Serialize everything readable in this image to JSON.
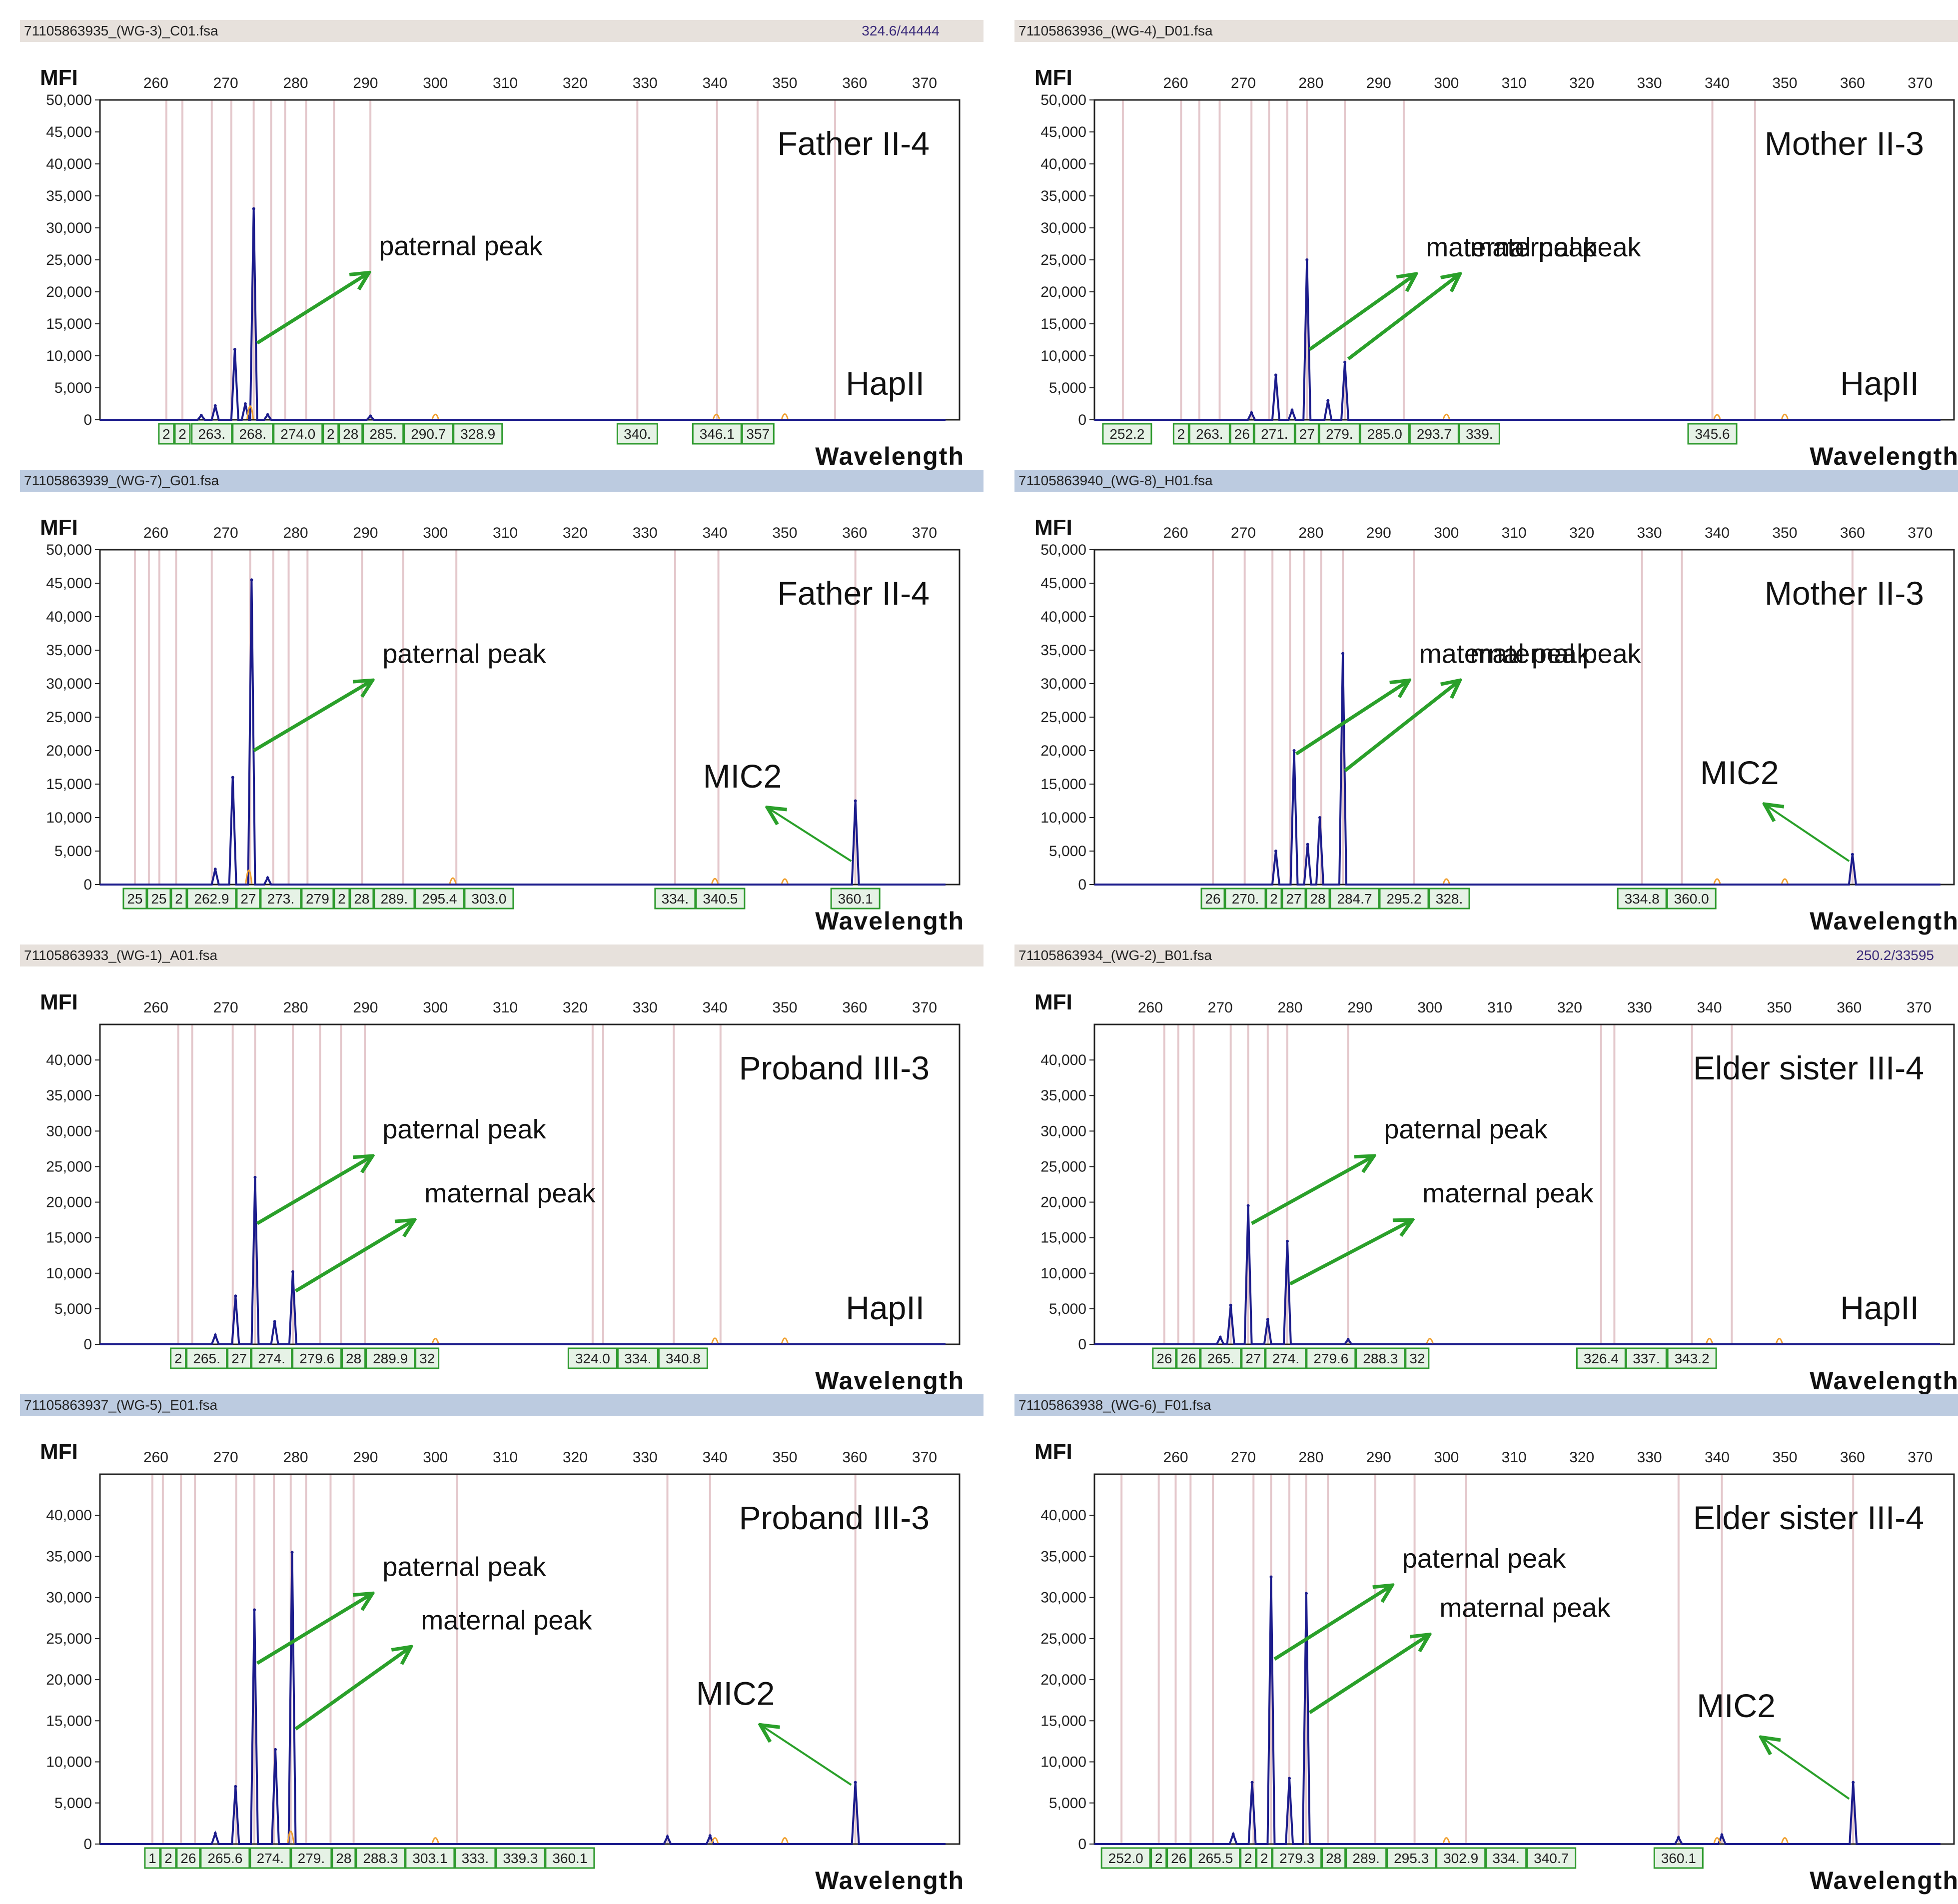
{
  "common": {
    "y_axis_label": "MFI",
    "x_axis_label": "Wavelength",
    "x_ticks": [
      260,
      270,
      280,
      290,
      300,
      310,
      320,
      330,
      340,
      350,
      360,
      370
    ],
    "hap_label": "HapII",
    "mic_label": "MIC2",
    "paternal_label": "paternal peak",
    "maternal_label": "maternal peak"
  },
  "colors": {
    "trace": "#1c1c8c",
    "arrow": "#2aa02a",
    "gridline": "#e4c8cc",
    "bin_box": "#2e9a2e",
    "bin_fill": "#e6f2e6",
    "header_tan": "#e7e1dc",
    "header_blue": "#bccbe0",
    "frame": "#222222"
  },
  "chart_data": [
    {
      "id": "A",
      "type": "line",
      "filename": "71105863935_(WG-3)_C01.fsa",
      "header_value": "324.6/44444",
      "header_style": "tan",
      "title": "Father II-4",
      "show_hap": true,
      "show_mic": false,
      "xlim": [
        252,
        375
      ],
      "ylim": [
        0,
        50000
      ],
      "yticks": [
        0,
        5000,
        10000,
        15000,
        20000,
        25000,
        30000,
        35000,
        40000,
        45000,
        50000
      ],
      "ytick_labels": [
        "0",
        "5,000",
        "10,000",
        "15,000",
        "20,000",
        "25,000",
        "30,000",
        "35,000",
        "40,000",
        "45,000",
        "50,000"
      ],
      "gridlines": [
        261.5,
        263.8,
        268.0,
        270.8,
        274.0,
        276.5,
        278.5,
        281.5,
        285.5,
        290.7,
        328.9,
        340.3,
        346.1,
        357.2
      ],
      "bins": [
        "2",
        "2",
        "263.",
        "268.",
        "274.0",
        "2",
        "28",
        "285.",
        "290.7",
        "328.9",
        "340.",
        "346.1",
        "357"
      ],
      "peaks": [
        {
          "x": 266.5,
          "y": 700
        },
        {
          "x": 268.5,
          "y": 2200
        },
        {
          "x": 271.3,
          "y": 11000
        },
        {
          "x": 272.8,
          "y": 2500
        },
        {
          "x": 274.0,
          "y": 33000
        },
        {
          "x": 276.0,
          "y": 800
        },
        {
          "x": 290.7,
          "y": 600
        }
      ],
      "markers": [
        {
          "x": 273.5,
          "y": 3500
        },
        {
          "x": 300.0,
          "y": 900
        },
        {
          "x": 340.2,
          "y": 900
        },
        {
          "x": 350.0,
          "y": 1000
        }
      ],
      "annotations": [
        {
          "label": "paternal_label",
          "text": "paternal peak",
          "start": [
            274.5,
            12000
          ],
          "end": [
            290.5,
            23000
          ]
        }
      ]
    },
    {
      "id": "B",
      "type": "line",
      "filename": "71105863936_(WG-4)_D01.fsa",
      "header_value": "",
      "header_style": "tan",
      "title": "Mother II-3",
      "show_hap": true,
      "show_mic": false,
      "xlim": [
        248,
        375
      ],
      "ylim": [
        0,
        50000
      ],
      "yticks": [
        0,
        5000,
        10000,
        15000,
        20000,
        25000,
        30000,
        35000,
        40000,
        45000,
        50000
      ],
      "ytick_labels": [
        "0",
        "5,000",
        "10,000",
        "15,000",
        "20,000",
        "25,000",
        "30,000",
        "35,000",
        "40,000",
        "45,000",
        "50,000"
      ],
      "gridlines": [
        252.2,
        260.8,
        263.5,
        266.5,
        271.2,
        273.8,
        276.5,
        279.4,
        285.0,
        293.7,
        339.3,
        345.6
      ],
      "bins": [
        "252.2",
        "2",
        "263.",
        "26",
        "271.",
        "27",
        "279.",
        "285.0",
        "293.7",
        "339.",
        "345.6"
      ],
      "peaks": [
        {
          "x": 271.2,
          "y": 1100
        },
        {
          "x": 274.8,
          "y": 7000
        },
        {
          "x": 277.2,
          "y": 1500
        },
        {
          "x": 279.4,
          "y": 25000
        },
        {
          "x": 282.5,
          "y": 3000
        },
        {
          "x": 285.0,
          "y": 9000
        }
      ],
      "markers": [
        {
          "x": 300.0,
          "y": 900
        },
        {
          "x": 340.0,
          "y": 800
        },
        {
          "x": 350.0,
          "y": 900
        }
      ],
      "annotations": [
        {
          "label": "maternal_label",
          "text": "maternal peak",
          "start": [
            279.8,
            11000
          ],
          "end": [
            295.5,
            22800
          ]
        },
        {
          "label": "maternal_label",
          "text": "maternal peak",
          "start": [
            285.5,
            9500
          ],
          "end": [
            302.0,
            22800
          ]
        }
      ]
    },
    {
      "id": "C",
      "type": "line",
      "filename": "71105863939_(WG-7)_G01.fsa",
      "header_value": "",
      "header_style": "blue",
      "title": "Father II-4",
      "show_hap": false,
      "show_mic": true,
      "xlim": [
        252,
        375
      ],
      "ylim": [
        0,
        50000
      ],
      "yticks": [
        0,
        5000,
        10000,
        15000,
        20000,
        25000,
        30000,
        35000,
        40000,
        45000,
        50000
      ],
      "ytick_labels": [
        "0",
        "5,000",
        "10,000",
        "15,000",
        "20,000",
        "25,000",
        "30,000",
        "35,000",
        "40,000",
        "45,000",
        "50,000"
      ],
      "gridlines": [
        257.0,
        259.0,
        260.5,
        262.9,
        268.0,
        273.5,
        276.8,
        279.0,
        281.7,
        289.5,
        295.4,
        303.0,
        334.3,
        340.5,
        360.1
      ],
      "bins": [
        "25",
        "25",
        "2",
        "262.9",
        "27",
        "273.",
        "279",
        "2",
        "28",
        "289.",
        "295.4",
        "303.0",
        "334.",
        "340.5",
        "360.1"
      ],
      "peaks": [
        {
          "x": 268.5,
          "y": 2300
        },
        {
          "x": 271.0,
          "y": 16000
        },
        {
          "x": 273.7,
          "y": 45500
        },
        {
          "x": 276.0,
          "y": 1000
        },
        {
          "x": 360.1,
          "y": 12500
        }
      ],
      "markers": [
        {
          "x": 273.3,
          "y": 3500
        },
        {
          "x": 302.5,
          "y": 1200
        },
        {
          "x": 340.0,
          "y": 1000
        },
        {
          "x": 350.0,
          "y": 900
        }
      ],
      "annotations": [
        {
          "label": "paternal_label",
          "text": "paternal peak",
          "start": [
            274.0,
            20000
          ],
          "end": [
            291.0,
            30500
          ]
        },
        {
          "label": "mic_label",
          "text": "MIC2",
          "start": [
            359.5,
            3500
          ],
          "end": [
            347.5,
            11500
          ]
        }
      ]
    },
    {
      "id": "D",
      "type": "line",
      "filename": "71105863940_(WG-8)_H01.fsa",
      "header_value": "",
      "header_style": "blue",
      "title": "Mother II-3",
      "show_hap": false,
      "show_mic": true,
      "xlim": [
        248,
        375
      ],
      "ylim": [
        0,
        50000
      ],
      "yticks": [
        0,
        5000,
        10000,
        15000,
        20000,
        25000,
        30000,
        35000,
        40000,
        45000,
        50000
      ],
      "ytick_labels": [
        "0",
        "5,000",
        "10,000",
        "15,000",
        "20,000",
        "25,000",
        "30,000",
        "35,000",
        "40,000",
        "45,000",
        "50,000"
      ],
      "gridlines": [
        265.5,
        270.2,
        274.3,
        276.9,
        279.0,
        281.5,
        284.7,
        295.2,
        328.9,
        334.8,
        360.0
      ],
      "bins": [
        "26",
        "270.",
        "2",
        "27",
        "28",
        "284.7",
        "295.2",
        "328.",
        "334.8",
        "360.0"
      ],
      "peaks": [
        {
          "x": 274.8,
          "y": 5000
        },
        {
          "x": 277.5,
          "y": 20000
        },
        {
          "x": 279.5,
          "y": 6000
        },
        {
          "x": 281.3,
          "y": 10000
        },
        {
          "x": 284.7,
          "y": 34500
        },
        {
          "x": 360.0,
          "y": 4500
        }
      ],
      "markers": [
        {
          "x": 300.0,
          "y": 900
        },
        {
          "x": 340.0,
          "y": 900
        },
        {
          "x": 350.0,
          "y": 900
        }
      ],
      "annotations": [
        {
          "label": "maternal_label",
          "text": "maternal peak",
          "start": [
            277.8,
            19500
          ],
          "end": [
            294.5,
            30500
          ]
        },
        {
          "label": "maternal_label",
          "text": "maternal peak",
          "start": [
            285.0,
            17000
          ],
          "end": [
            302.0,
            30500
          ]
        },
        {
          "label": "mic_label",
          "text": "MIC2",
          "start": [
            359.5,
            3500
          ],
          "end": [
            347.0,
            12000
          ]
        }
      ]
    },
    {
      "id": "E",
      "type": "line",
      "filename": "71105863933_(WG-1)_A01.fsa",
      "header_value": "",
      "header_style": "tan",
      "title": "Proband III-3",
      "show_hap": true,
      "show_mic": false,
      "xlim": [
        252,
        375
      ],
      "ylim": [
        0,
        45000
      ],
      "yticks": [
        0,
        5000,
        10000,
        15000,
        20000,
        25000,
        30000,
        35000,
        40000
      ],
      "ytick_labels": [
        "0",
        "5,000",
        "10,000",
        "15,000",
        "20,000",
        "25,000",
        "30,000",
        "35,000",
        "40,000"
      ],
      "gridlines": [
        263.2,
        265.2,
        271.0,
        274.2,
        279.6,
        283.5,
        286.5,
        289.9,
        322.5,
        324.0,
        334.1,
        340.8
      ],
      "bins": [
        "2",
        "265.",
        "27",
        "274.",
        "279.6",
        "28",
        "289.9",
        "32",
        "324.0",
        "334.",
        "340.8"
      ],
      "peaks": [
        {
          "x": 268.5,
          "y": 1300
        },
        {
          "x": 271.4,
          "y": 6800
        },
        {
          "x": 274.2,
          "y": 23500
        },
        {
          "x": 277.0,
          "y": 3200
        },
        {
          "x": 279.6,
          "y": 10200
        }
      ],
      "markers": [
        {
          "x": 300.0,
          "y": 900
        },
        {
          "x": 340.0,
          "y": 1000
        },
        {
          "x": 350.0,
          "y": 1000
        }
      ],
      "annotations": [
        {
          "label": "paternal_label",
          "text": "paternal peak",
          "start": [
            274.5,
            17000
          ],
          "end": [
            291.0,
            26500
          ]
        },
        {
          "label": "maternal_label",
          "text": "maternal peak",
          "start": [
            280.0,
            7500
          ],
          "end": [
            297.0,
            17500
          ]
        }
      ]
    },
    {
      "id": "F",
      "type": "line",
      "filename": "71105863934_(WG-2)_B01.fsa",
      "header_value": "250.2/33595",
      "header_style": "tan",
      "title": "Elder sister III-4",
      "show_hap": true,
      "show_mic": false,
      "xlim": [
        252,
        375
      ],
      "ylim": [
        0,
        45000
      ],
      "yticks": [
        0,
        5000,
        10000,
        15000,
        20000,
        25000,
        30000,
        35000,
        40000
      ],
      "ytick_labels": [
        "0",
        "5,000",
        "10,000",
        "15,000",
        "20,000",
        "25,000",
        "30,000",
        "35,000",
        "40,000"
      ],
      "gridlines": [
        262.0,
        264.0,
        266.2,
        271.5,
        274.0,
        276.8,
        279.6,
        288.3,
        324.5,
        326.4,
        337.5,
        343.2
      ],
      "bins": [
        "26",
        "26",
        "265.",
        "27",
        "274.",
        "279.6",
        "288.3",
        "32",
        "326.4",
        "337.",
        "343.2"
      ],
      "peaks": [
        {
          "x": 270.0,
          "y": 1000
        },
        {
          "x": 271.5,
          "y": 5500
        },
        {
          "x": 274.0,
          "y": 19500
        },
        {
          "x": 276.8,
          "y": 3500
        },
        {
          "x": 279.6,
          "y": 14500
        },
        {
          "x": 288.3,
          "y": 700
        }
      ],
      "markers": [
        {
          "x": 300.0,
          "y": 900
        },
        {
          "x": 340.0,
          "y": 900
        },
        {
          "x": 350.0,
          "y": 900
        }
      ],
      "annotations": [
        {
          "label": "paternal_label",
          "text": "paternal peak",
          "start": [
            274.5,
            17000
          ],
          "end": [
            292.0,
            26500
          ]
        },
        {
          "label": "maternal_label",
          "text": "maternal peak",
          "start": [
            280.0,
            8500
          ],
          "end": [
            297.5,
            17500
          ]
        }
      ]
    },
    {
      "id": "G",
      "type": "line",
      "filename": "71105863937_(WG-5)_E01.fsa",
      "header_value": "",
      "header_style": "blue",
      "title": "Proband III-3",
      "show_hap": false,
      "show_mic": true,
      "xlim": [
        252,
        375
      ],
      "ylim": [
        0,
        45000
      ],
      "yticks": [
        0,
        5000,
        10000,
        15000,
        20000,
        25000,
        30000,
        35000,
        40000
      ],
      "ytick_labels": [
        "0",
        "5,000",
        "10,000",
        "15,000",
        "20,000",
        "25,000",
        "30,000",
        "35,000",
        "40,000"
      ],
      "gridlines": [
        259.5,
        261.0,
        263.6,
        265.6,
        271.5,
        274.1,
        276.9,
        279.3,
        281.5,
        285.0,
        288.3,
        303.1,
        333.2,
        339.3,
        360.1
      ],
      "bins": [
        "1",
        "2",
        "26",
        "265.6",
        "274.",
        "279.",
        "28",
        "288.3",
        "303.1",
        "333.",
        "339.3",
        "360.1"
      ],
      "peaks": [
        {
          "x": 268.5,
          "y": 1300
        },
        {
          "x": 271.4,
          "y": 7000
        },
        {
          "x": 274.1,
          "y": 28500
        },
        {
          "x": 277.1,
          "y": 11500
        },
        {
          "x": 279.5,
          "y": 35500
        },
        {
          "x": 333.2,
          "y": 900
        },
        {
          "x": 339.3,
          "y": 1000
        },
        {
          "x": 360.1,
          "y": 7500
        }
      ],
      "markers": [
        {
          "x": 279.3,
          "y": 2500
        },
        {
          "x": 300.0,
          "y": 900
        },
        {
          "x": 340.0,
          "y": 900
        },
        {
          "x": 350.0,
          "y": 900
        }
      ],
      "annotations": [
        {
          "label": "paternal_label",
          "text": "paternal peak",
          "start": [
            274.5,
            22000
          ],
          "end": [
            291.0,
            30500
          ]
        },
        {
          "label": "maternal_label",
          "text": "maternal peak",
          "start": [
            280.0,
            14000
          ],
          "end": [
            296.5,
            24000
          ]
        },
        {
          "label": "mic_label",
          "text": "MIC2",
          "start": [
            359.5,
            7200
          ],
          "end": [
            346.5,
            14500
          ]
        }
      ]
    },
    {
      "id": "H",
      "type": "line",
      "filename": "71105863938_(WG-6)_F01.fsa",
      "header_value": "",
      "header_style": "blue",
      "title": "Elder sister III-4",
      "show_hap": false,
      "show_mic": true,
      "xlim": [
        248,
        375
      ],
      "ylim": [
        0,
        45000
      ],
      "yticks": [
        0,
        5000,
        10000,
        15000,
        20000,
        25000,
        30000,
        35000,
        40000
      ],
      "ytick_labels": [
        "0",
        "5,000",
        "10,000",
        "15,000",
        "20,000",
        "25,000",
        "30,000",
        "35,000",
        "40,000"
      ],
      "gridlines": [
        252.0,
        257.5,
        260.0,
        262.2,
        265.5,
        271.5,
        274.1,
        276.8,
        279.3,
        282.5,
        289.5,
        295.3,
        302.9,
        334.3,
        340.7,
        360.1
      ],
      "bins": [
        "252.0",
        "2",
        "26",
        "265.5",
        "2",
        "2",
        "279.3",
        "28",
        "289.",
        "295.3",
        "302.9",
        "334.",
        "340.7",
        "360.1"
      ],
      "peaks": [
        {
          "x": 268.5,
          "y": 1200
        },
        {
          "x": 271.3,
          "y": 7500
        },
        {
          "x": 274.1,
          "y": 32500
        },
        {
          "x": 276.8,
          "y": 8000
        },
        {
          "x": 279.3,
          "y": 30500
        },
        {
          "x": 334.3,
          "y": 800
        },
        {
          "x": 340.7,
          "y": 1100
        },
        {
          "x": 360.1,
          "y": 7500
        }
      ],
      "markers": [
        {
          "x": 300.0,
          "y": 900
        },
        {
          "x": 340.0,
          "y": 900
        },
        {
          "x": 350.0,
          "y": 900
        }
      ],
      "annotations": [
        {
          "label": "paternal_label",
          "text": "paternal peak",
          "start": [
            274.6,
            22500
          ],
          "end": [
            292.0,
            31500
          ]
        },
        {
          "label": "maternal_label",
          "text": "maternal peak",
          "start": [
            279.8,
            16000
          ],
          "end": [
            297.5,
            25500
          ]
        },
        {
          "label": "mic_label",
          "text": "MIC2",
          "start": [
            359.5,
            5500
          ],
          "end": [
            346.5,
            13000
          ]
        }
      ]
    }
  ]
}
